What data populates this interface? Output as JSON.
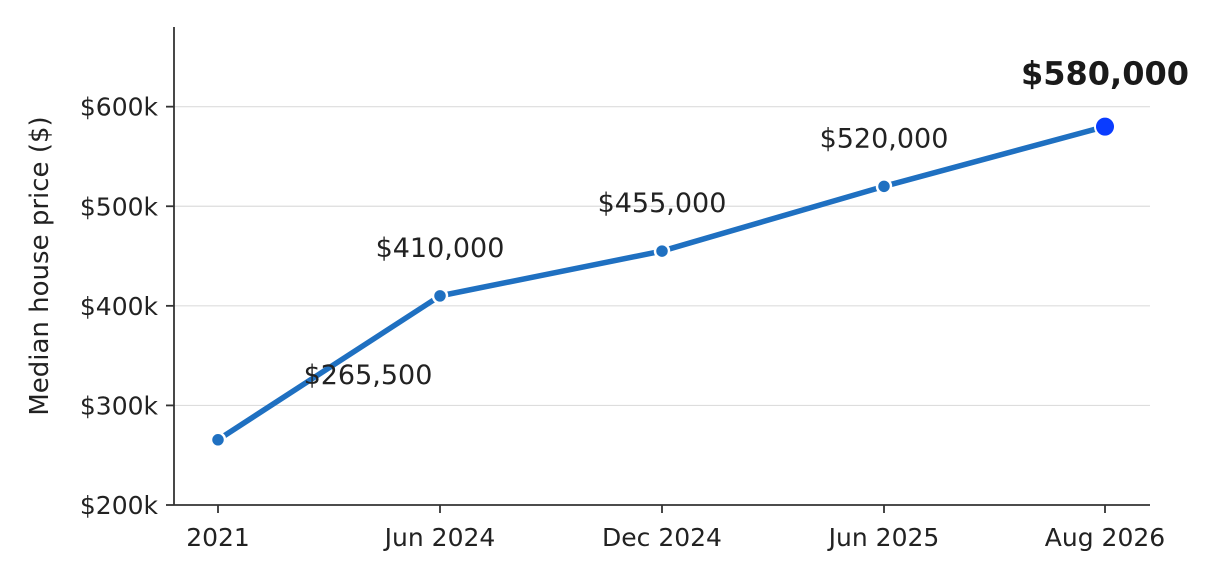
{
  "chart_data": {
    "type": "line",
    "title": "",
    "xlabel": "",
    "ylabel": "Median house price ($)",
    "x": [
      "2021",
      "Jun 2024",
      "Dec 2024",
      "Jun 2025",
      "Aug 2026"
    ],
    "series": [
      {
        "values": [
          265500,
          410000,
          455000,
          520000,
          580000
        ],
        "color": "#1f70c1"
      }
    ],
    "data_labels": [
      "$265,500",
      "$410,000",
      "$455,000",
      "$520,000",
      "$580,000"
    ],
    "highlight_index": 4,
    "highlight_color": "#0a3cff",
    "ylim": [
      200000,
      680000
    ],
    "y_ticks": [
      200000,
      300000,
      400000,
      500000,
      600000
    ],
    "y_tick_labels": [
      "$200k",
      "$300k",
      "$400k",
      "$500k",
      "$600k"
    ],
    "grid": "horizontal",
    "legend": "none"
  }
}
